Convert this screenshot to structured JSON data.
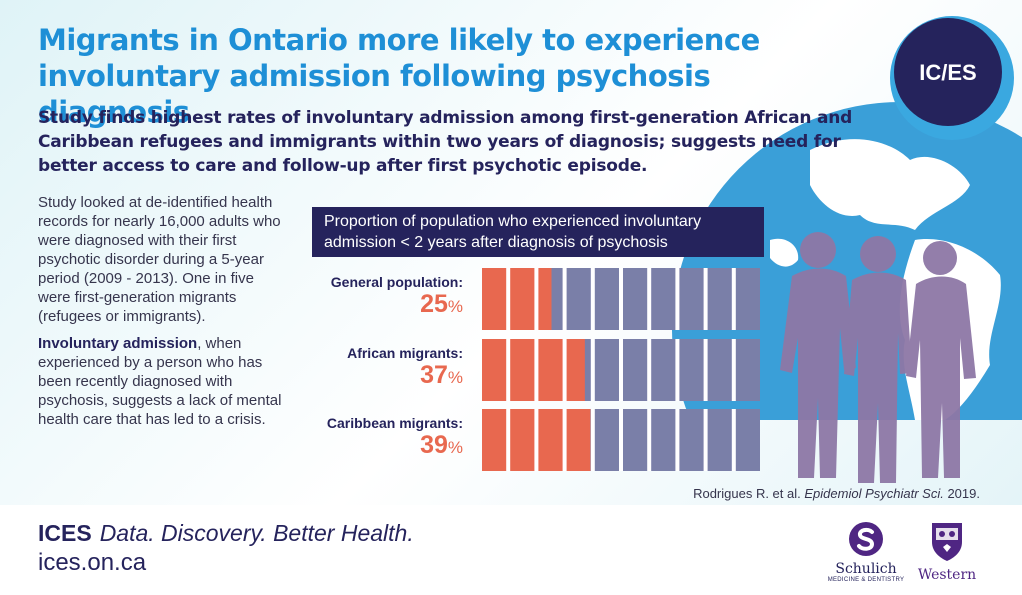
{
  "title": "Migrants in Ontario more likely to experience involuntary admission following psychosis diagnosis",
  "subtitle": "Study finds highest rates of involuntary admission among first-generation African and Caribbean refugees and immigrants within two years of diagnosis; suggests need for better access to care and follow-up after first psychotic episode.",
  "logo_text": "IC/ES",
  "side_text": {
    "para1": "Study looked at de-identified health records for nearly 16,000 adults who were diagnosed with their first psychotic disorder during a 5-year period (2009 - 2013). One in five were first-generation migrants (refugees or immigrants).",
    "para2_bold": "Involuntary admission",
    "para2_rest": ", when experienced by a person who has been recently diagnosed with psychosis, suggests a lack of mental health care that has led to a crisis."
  },
  "chart_data": {
    "type": "bar",
    "title": "Proportion of population who experienced involuntary admission < 2 years after diagnosis of psychosis",
    "categories": [
      "General population:",
      "African migrants:",
      "Caribbean migrants:"
    ],
    "values": [
      25,
      37,
      39
    ],
    "unit": "%",
    "ylim": [
      0,
      100
    ],
    "colors": {
      "filled": "#e8684f",
      "remaining": "#7a7fa8"
    }
  },
  "citation": {
    "authors": "Rodrigues R.  et al.",
    "journal": "Epidemiol Psychiatr Sci.",
    "year": "2019."
  },
  "footer": {
    "brand": "ICES",
    "tagline": "Data. Discovery. Better Health.",
    "url": "ices.on.ca",
    "schulich_name": "Schulich",
    "schulich_sub": "MEDICINE & DENTISTRY",
    "western_name": "Western"
  },
  "colors": {
    "navy": "#25235c",
    "blue": "#1e8fd6",
    "orange": "#e8684f",
    "slate": "#7a7fa8",
    "globe": "#3a9fd8",
    "people": "#8e78a6"
  }
}
